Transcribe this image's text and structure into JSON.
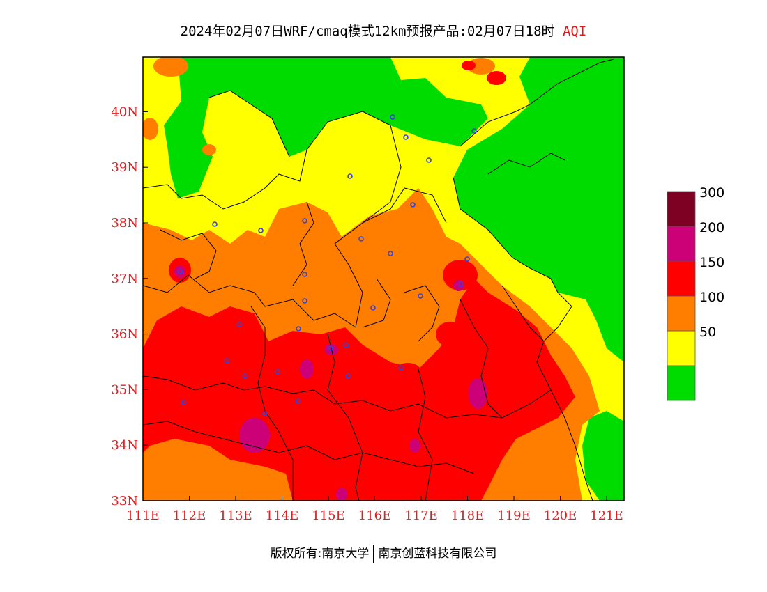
{
  "title": {
    "main": "2024年02月07日WRF/cmaq模式12km预报产品:02月07日18时",
    "variable": "AQI"
  },
  "axes": {
    "lon_labels": [
      "111E",
      "112E",
      "113E",
      "114E",
      "115E",
      "116E",
      "117E",
      "118E",
      "119E",
      "120E",
      "121E"
    ],
    "lat_labels": [
      "33N",
      "34N",
      "35N",
      "36N",
      "37N",
      "38N",
      "39N",
      "40N"
    ]
  },
  "legend": {
    "levels": [
      {
        "label": "",
        "color": "#00dc00"
      },
      {
        "label": "50",
        "color": "#ffff00"
      },
      {
        "label": "100",
        "color": "#ff7e00"
      },
      {
        "label": "150",
        "color": "#ff0000"
      },
      {
        "label": "200",
        "color": "#cc0077"
      },
      {
        "label": "300",
        "color": "#7e0023"
      }
    ]
  },
  "footer": {
    "left": "版权所有:南京大学",
    "right": "南京创蓝科技有限公司"
  }
}
